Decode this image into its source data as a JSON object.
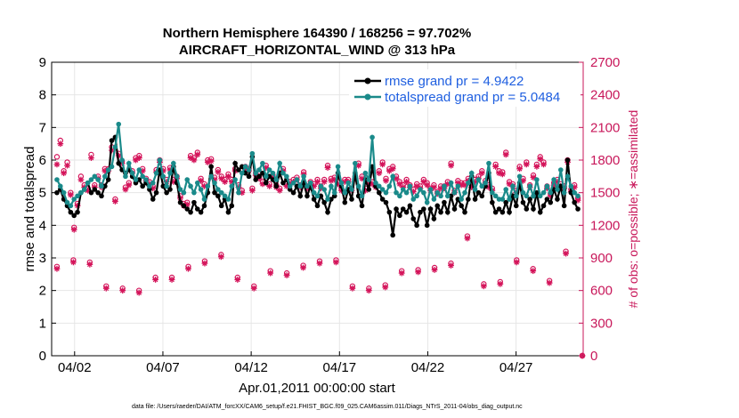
{
  "chart_data": {
    "type": "line",
    "title": [
      "Northern Hemisphere 164390 / 168256 = 97.702%",
      "AIRCRAFT_HORIZONTAL_WIND @ 313 hPa"
    ],
    "xlabel": "Apr.01,2011 00:00:00 start",
    "ylabel": "rmse and totalspread",
    "y2label": "# of obs: o=possible; ∗=assimilated",
    "x_ticks": [
      "04/02",
      "04/07",
      "04/12",
      "04/17",
      "04/22",
      "04/27"
    ],
    "y_ticks": [
      "0",
      "1",
      "2",
      "3",
      "4",
      "5",
      "6",
      "7",
      "8",
      "9"
    ],
    "y2_ticks": [
      "0",
      "300",
      "600",
      "900",
      "1200",
      "1500",
      "1800",
      "2100",
      "2400",
      "2700"
    ],
    "ylim": [
      0,
      9
    ],
    "y2lim": [
      0,
      2700
    ],
    "xlim": [
      0.7,
      30.8
    ],
    "footer": "data file: /Users/raeder/DAI/ATM_forcXX/CAM6_setup/f.e21.FHIST_BGC.f09_025.CAM6assim.011/Diags_NTrS_2011-04/obs_diag_output.nc",
    "legend": [
      "rmse grand pr = 4.9422",
      "totalspread grand pr = 5.0484"
    ],
    "colors": {
      "rmse": "#000000",
      "spread": "#1a8a8a",
      "obs": "#d4145a",
      "axis2": "#c8175a",
      "legend_text": "#1f5fe0"
    },
    "series": [
      {
        "name": "rmse",
        "values": [
          5.0,
          5.1,
          4.8,
          4.6,
          4.4,
          4.3,
          4.4,
          5.0,
          5.1,
          5.3,
          5.0,
          5.1,
          5.0,
          4.9,
          5.2,
          5.4,
          6.6,
          6.7,
          5.9,
          5.7,
          5.6,
          5.7,
          5.5,
          5.3,
          5.4,
          5.2,
          5.3,
          5.1,
          4.8,
          5.0,
          5.7,
          5.2,
          5.0,
          5.1,
          5.8,
          5.3,
          4.7,
          4.6,
          4.5,
          4.4,
          4.7,
          4.5,
          4.4,
          4.6,
          5.0,
          5.8,
          5.0,
          4.9,
          4.6,
          4.8,
          4.4,
          4.6,
          5.9,
          5.7,
          5.8,
          5.6,
          5.5,
          6.1,
          5.4,
          5.5,
          5.6,
          5.3,
          5.5,
          5.4,
          5.2,
          5.6,
          5.3,
          5.4,
          5.1,
          5.0,
          5.2,
          4.9,
          5.3,
          4.9,
          5.2,
          4.8,
          4.6,
          4.9,
          4.7,
          4.4,
          4.8,
          4.9,
          5.6,
          5.2,
          4.7,
          5.1,
          4.8,
          5.6,
          4.9,
          4.6,
          5.4,
          5.1,
          5.8,
          5.2,
          5.0,
          4.8,
          4.7,
          4.4,
          3.7,
          4.5,
          4.3,
          4.5,
          4.4,
          4.6,
          4.2,
          4.0,
          4.4,
          4.5,
          4.0,
          4.5,
          4.2,
          4.6,
          4.4,
          4.7,
          4.4,
          4.9,
          4.5,
          4.8,
          4.6,
          4.4,
          4.8,
          5.5,
          4.8,
          5.0,
          4.9,
          5.2,
          5.6,
          4.7,
          4.4,
          4.5,
          4.4,
          4.7,
          4.4,
          4.9,
          4.6,
          5.3,
          4.7,
          4.5,
          4.8,
          4.5,
          5.0,
          4.4,
          4.6,
          4.8,
          4.7,
          5.1,
          4.8,
          5.2,
          4.6,
          6.0,
          5.0,
          4.7,
          4.5
        ]
      },
      {
        "name": "totalspread",
        "values": [
          5.4,
          5.2,
          5.0,
          4.7,
          4.6,
          4.8,
          4.9,
          5.0,
          5.1,
          5.3,
          5.4,
          5.5,
          5.4,
          5.2,
          5.5,
          5.7,
          5.8,
          6.4,
          7.1,
          6.0,
          5.5,
          5.9,
          5.6,
          5.4,
          5.7,
          5.5,
          5.4,
          5.2,
          5.3,
          5.6,
          6.0,
          5.5,
          5.2,
          5.6,
          5.9,
          5.5,
          5.1,
          5.0,
          5.4,
          5.2,
          5.0,
          5.3,
          5.1,
          4.8,
          5.2,
          5.5,
          5.3,
          5.1,
          5.0,
          4.9,
          4.8,
          5.2,
          5.4,
          5.0,
          5.6,
          5.8,
          5.7,
          6.2,
          5.6,
          5.7,
          5.9,
          5.5,
          5.7,
          5.6,
          5.4,
          5.9,
          5.6,
          5.5,
          5.2,
          5.3,
          5.4,
          5.2,
          5.5,
          5.2,
          5.3,
          5.0,
          4.9,
          5.2,
          5.1,
          4.8,
          5.2,
          5.0,
          5.8,
          5.3,
          5.0,
          5.3,
          5.1,
          5.9,
          5.2,
          4.9,
          5.6,
          5.4,
          6.7,
          5.3,
          5.2,
          5.1,
          5.0,
          5.2,
          5.5,
          5.0,
          4.9,
          5.1,
          5.0,
          5.2,
          4.8,
          4.9,
          5.1,
          5.0,
          4.7,
          5.1,
          4.8,
          5.0,
          4.9,
          5.2,
          4.9,
          5.3,
          5.0,
          5.2,
          4.8,
          5.0,
          5.3,
          5.6,
          5.1,
          5.4,
          5.2,
          5.3,
          5.9,
          5.0,
          4.9,
          4.8,
          4.8,
          5.1,
          4.8,
          5.2,
          4.9,
          5.5,
          5.0,
          4.9,
          5.2,
          4.9,
          5.4,
          4.9,
          5.0,
          5.2,
          5.0,
          5.4,
          5.1,
          5.7,
          5.0,
          5.5,
          5.2,
          5.0,
          4.9
        ]
      },
      {
        "name": "obs_possible",
        "values": [
          1830,
          1980,
          1700,
          1780,
          1500,
          1180,
          1400,
          1650,
          1570,
          1540,
          1850,
          1570,
          1650,
          1570,
          1720,
          1720,
          1920,
          1440,
          1860,
          1790,
          1550,
          1590,
          1700,
          1820,
          1840,
          1720,
          1630,
          1600,
          1560,
          1710,
          1800,
          1720,
          1620,
          1730,
          1620,
          1650,
          1470,
          1400,
          1410,
          1840,
          1820,
          1870,
          1630,
          1580,
          1800,
          1810,
          1640,
          1710,
          1650,
          1620,
          1670,
          1620,
          1720,
          1570,
          1520,
          1740,
          1720,
          1540,
          1680,
          1650,
          1600,
          1750,
          1580,
          1660,
          1570,
          1540,
          1720,
          1580,
          1600,
          1620,
          1640,
          1570,
          1690,
          1560,
          1600,
          1580,
          1620,
          1560,
          1620,
          1750,
          1630,
          1640,
          1600,
          1540,
          1620,
          1620,
          1540,
          1650,
          1770,
          1650,
          1540,
          1600,
          1600,
          1570,
          1700,
          1780,
          1630,
          1720,
          1740,
          1650,
          1600,
          1570,
          1620,
          1570,
          1530,
          1580,
          1560,
          1620,
          1590,
          1540,
          1570,
          1510,
          1560,
          1560,
          1600,
          1770,
          1520,
          1610,
          1590,
          1590,
          1630,
          1570,
          1620,
          1650,
          1700,
          1610,
          1570,
          1540,
          1760,
          1700,
          1690,
          1870,
          1600,
          1580,
          1520,
          1740,
          1630,
          1780,
          1570,
          1660,
          1760,
          1830,
          1780,
          1560,
          1490,
          1590,
          1620,
          1580,
          1560,
          1800,
          1530,
          1570,
          1450
        ]
      },
      {
        "name": "obs_assimilated",
        "values": [
          1760,
          1950,
          1680,
          1750,
          1480,
          1160,
          1380,
          1620,
          1550,
          1520,
          1820,
          1550,
          1630,
          1550,
          1700,
          1700,
          1890,
          1420,
          1840,
          1770,
          1530,
          1570,
          1680,
          1800,
          1820,
          1700,
          1610,
          1580,
          1540,
          1690,
          1780,
          1700,
          1600,
          1710,
          1600,
          1630,
          1450,
          1380,
          1390,
          1820,
          1800,
          1850,
          1610,
          1560,
          1780,
          1790,
          1620,
          1690,
          1630,
          1600,
          1650,
          1600,
          1700,
          1550,
          1500,
          1720,
          1700,
          1520,
          1660,
          1630,
          1580,
          1730,
          1560,
          1640,
          1550,
          1520,
          1700,
          1560,
          1580,
          1600,
          1620,
          1550,
          1670,
          1540,
          1580,
          1560,
          1600,
          1540,
          1600,
          1730,
          1610,
          1620,
          1580,
          1520,
          1600,
          1600,
          1520,
          1630,
          1750,
          1630,
          1520,
          1580,
          1580,
          1550,
          1680,
          1760,
          1610,
          1700,
          1720,
          1630,
          1580,
          1550,
          1600,
          1550,
          1510,
          1560,
          1540,
          1600,
          1570,
          1520,
          1550,
          1490,
          1540,
          1540,
          1580,
          1750,
          1500,
          1590,
          1570,
          1570,
          1610,
          1550,
          1600,
          1630,
          1680,
          1590,
          1550,
          1520,
          1740,
          1680,
          1670,
          1850,
          1580,
          1560,
          1500,
          1720,
          1610,
          1760,
          1550,
          1640,
          1740,
          1810,
          1760,
          1540,
          1470,
          1570,
          1600,
          1560,
          1540,
          1780,
          1510,
          1550,
          1430
        ]
      },
      {
        "name": "obs_possible_low",
        "values": [
          820,
          880,
          860,
          640,
          620,
          600,
          720,
          720,
          820,
          870,
          930,
          720,
          640,
          780,
          760,
          830,
          870,
          880,
          640,
          620,
          650,
          780,
          790,
          810,
          850,
          1100,
          660,
          680,
          880,
          800,
          690,
          960,
          0
        ]
      },
      {
        "name": "obs_assimilated_low",
        "values": [
          800,
          860,
          840,
          620,
          600,
          580,
          700,
          700,
          800,
          850,
          910,
          700,
          620,
          760,
          740,
          810,
          850,
          860,
          620,
          600,
          630,
          760,
          770,
          790,
          830,
          1080,
          640,
          660,
          860,
          780,
          670,
          940,
          0
        ]
      }
    ]
  }
}
